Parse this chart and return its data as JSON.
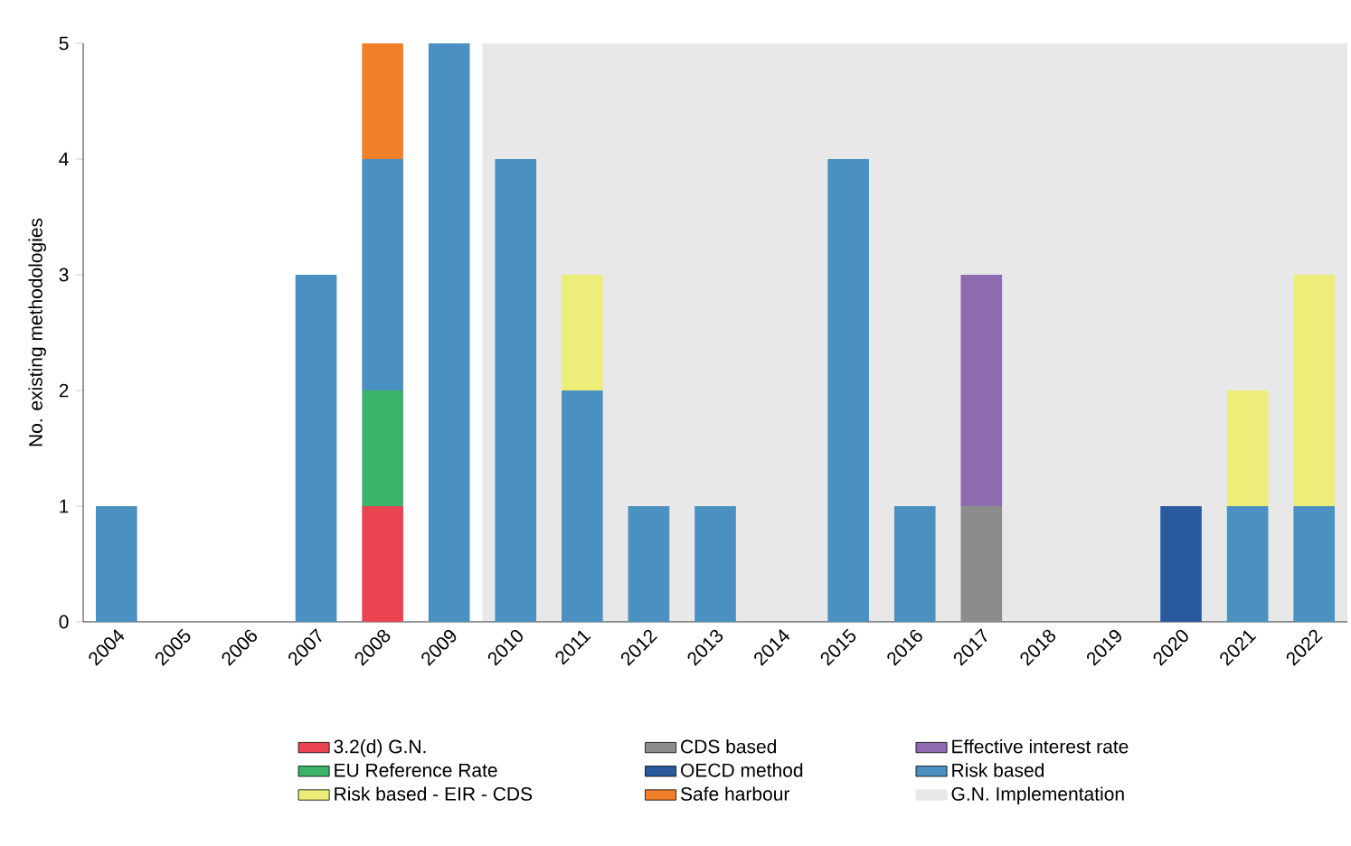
{
  "chart_data": {
    "type": "bar",
    "stacked": true,
    "ylabel": "No. existing methodologies",
    "categories": [
      "2004",
      "2005",
      "2006",
      "2007",
      "2008",
      "2009",
      "2010",
      "2011",
      "2012",
      "2013",
      "2014",
      "2015",
      "2016",
      "2017",
      "2018",
      "2019",
      "2020",
      "2021",
      "2022"
    ],
    "series": [
      {
        "name": "3.2(d) G.N.",
        "color": "#e8434f",
        "values": [
          null,
          null,
          null,
          null,
          1,
          null,
          null,
          null,
          null,
          null,
          null,
          null,
          null,
          null,
          null,
          null,
          null,
          null,
          null
        ]
      },
      {
        "name": "CDS based",
        "color": "#8c8c8c",
        "values": [
          null,
          null,
          null,
          null,
          null,
          null,
          null,
          null,
          null,
          null,
          null,
          null,
          null,
          1,
          null,
          null,
          null,
          null,
          null
        ]
      },
      {
        "name": "Effective interest rate",
        "color": "#8e6bb0",
        "values": [
          null,
          null,
          null,
          null,
          null,
          null,
          null,
          null,
          null,
          null,
          null,
          null,
          null,
          2,
          null,
          null,
          null,
          null,
          null
        ]
      },
      {
        "name": "EU Reference Rate",
        "color": "#3cb36a",
        "values": [
          null,
          null,
          null,
          null,
          1,
          null,
          null,
          null,
          null,
          null,
          null,
          null,
          null,
          null,
          null,
          null,
          null,
          null,
          null
        ]
      },
      {
        "name": "OECD method",
        "color": "#2a5a9e",
        "values": [
          null,
          null,
          null,
          null,
          null,
          null,
          null,
          null,
          null,
          null,
          null,
          null,
          null,
          null,
          null,
          null,
          1,
          null,
          null
        ]
      },
      {
        "name": "Risk based",
        "color": "#4a90c0",
        "values": [
          1,
          null,
          null,
          3,
          2,
          5,
          4,
          2,
          1,
          1,
          null,
          4,
          1,
          null,
          null,
          null,
          null,
          1,
          1
        ]
      },
      {
        "name": "Risk based - EIR - CDS",
        "color": "#eded7a",
        "values": [
          null,
          null,
          null,
          null,
          null,
          null,
          null,
          1,
          null,
          null,
          null,
          null,
          null,
          null,
          null,
          null,
          null,
          1,
          2
        ]
      },
      {
        "name": "Safe harbour",
        "color": "#f07f2a",
        "values": [
          null,
          null,
          null,
          null,
          1,
          null,
          null,
          null,
          null,
          null,
          null,
          null,
          null,
          null,
          null,
          null,
          null,
          null,
          null
        ]
      }
    ],
    "bands": [
      {
        "axis": "x",
        "from": "2010",
        "to": "2022",
        "label": "G.N. Implementation",
        "color": "#e8e8e8"
      }
    ],
    "ylim": [
      0,
      5
    ],
    "yticks": [
      0,
      1,
      2,
      3,
      4,
      5
    ],
    "grid": false,
    "legend": "bottom"
  }
}
